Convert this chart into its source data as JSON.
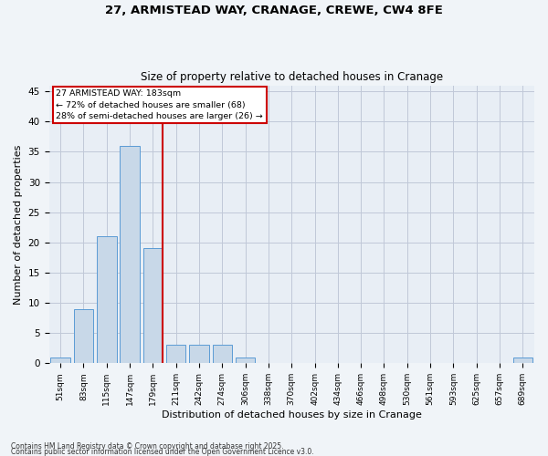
{
  "title1": "27, ARMISTEAD WAY, CRANAGE, CREWE, CW4 8FE",
  "title2": "Size of property relative to detached houses in Cranage",
  "xlabel": "Distribution of detached houses by size in Cranage",
  "ylabel": "Number of detached properties",
  "categories": [
    "51sqm",
    "83sqm",
    "115sqm",
    "147sqm",
    "179sqm",
    "211sqm",
    "242sqm",
    "274sqm",
    "306sqm",
    "338sqm",
    "370sqm",
    "402sqm",
    "434sqm",
    "466sqm",
    "498sqm",
    "530sqm",
    "561sqm",
    "593sqm",
    "625sqm",
    "657sqm",
    "689sqm"
  ],
  "values": [
    1,
    9,
    21,
    36,
    19,
    3,
    3,
    3,
    1,
    0,
    0,
    0,
    0,
    0,
    0,
    0,
    0,
    0,
    0,
    0,
    1
  ],
  "bar_color": "#c8d8e8",
  "bar_edge_color": "#5b9bd5",
  "vline_pos": 4.425,
  "vline_color": "#cc0000",
  "annotation_text": "27 ARMISTEAD WAY: 183sqm\n← 72% of detached houses are smaller (68)\n28% of semi-detached houses are larger (26) →",
  "annotation_box_color": "#ffffff",
  "annotation_box_edge": "#cc0000",
  "ylim": [
    0,
    46
  ],
  "yticks": [
    0,
    5,
    10,
    15,
    20,
    25,
    30,
    35,
    40,
    45
  ],
  "grid_color": "#c0c8d8",
  "bg_color": "#e8eef5",
  "fig_bg_color": "#f0f4f8",
  "footer1": "Contains HM Land Registry data © Crown copyright and database right 2025.",
  "footer2": "Contains public sector information licensed under the Open Government Licence v3.0."
}
